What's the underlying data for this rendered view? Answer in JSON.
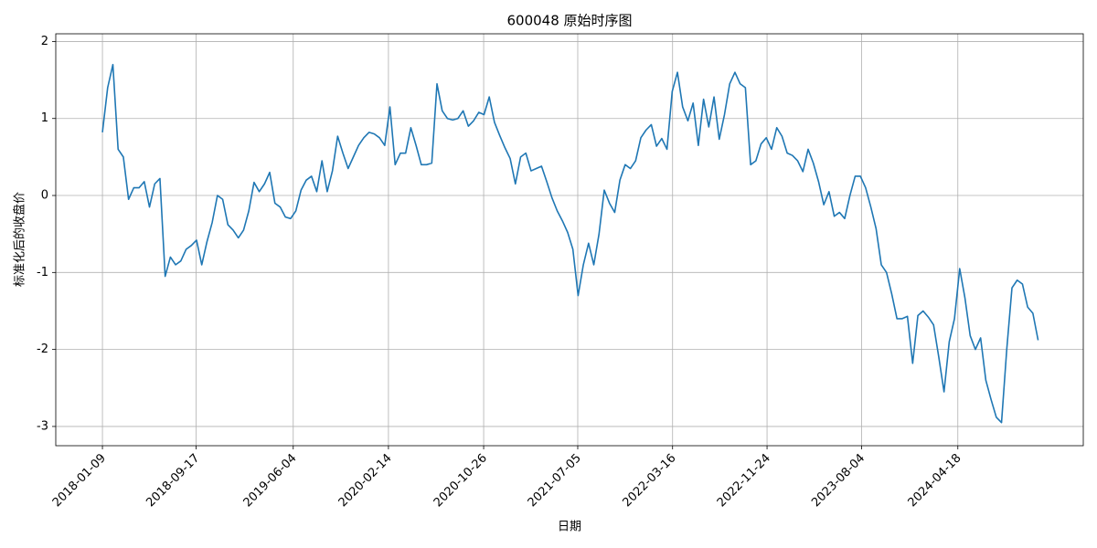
{
  "chart_data": {
    "type": "line",
    "title": "600048 原始时序图",
    "x_label": "日期",
    "y_label": "标准化后的收盘价",
    "x": [
      "2018-01-09",
      "2018-01-23",
      "2018-02-06",
      "2018-02-20",
      "2018-03-06",
      "2018-03-20",
      "2018-04-03",
      "2018-04-17",
      "2018-05-01",
      "2018-05-15",
      "2018-05-29",
      "2018-06-12",
      "2018-06-26",
      "2018-07-10",
      "2018-07-24",
      "2018-08-07",
      "2018-08-21",
      "2018-09-04",
      "2018-09-18",
      "2018-10-02",
      "2018-10-16",
      "2018-10-30",
      "2018-11-13",
      "2018-11-27",
      "2018-12-11",
      "2018-12-25",
      "2019-01-08",
      "2019-01-22",
      "2019-02-05",
      "2019-02-19",
      "2019-03-05",
      "2019-03-19",
      "2019-04-02",
      "2019-04-16",
      "2019-04-30",
      "2019-05-14",
      "2019-05-28",
      "2019-06-11",
      "2019-06-25",
      "2019-07-09",
      "2019-07-23",
      "2019-08-06",
      "2019-08-20",
      "2019-09-03",
      "2019-09-17",
      "2019-10-01",
      "2019-10-15",
      "2019-10-29",
      "2019-11-12",
      "2019-11-26",
      "2019-12-10",
      "2019-12-24",
      "2020-01-07",
      "2020-01-21",
      "2020-02-04",
      "2020-02-18",
      "2020-03-03",
      "2020-03-17",
      "2020-03-31",
      "2020-04-14",
      "2020-04-28",
      "2020-05-12",
      "2020-05-26",
      "2020-06-09",
      "2020-06-23",
      "2020-07-07",
      "2020-07-21",
      "2020-08-04",
      "2020-08-18",
      "2020-09-01",
      "2020-09-15",
      "2020-09-29",
      "2020-10-13",
      "2020-10-27",
      "2020-11-10",
      "2020-11-24",
      "2020-12-08",
      "2020-12-22",
      "2021-01-05",
      "2021-01-19",
      "2021-02-02",
      "2021-02-16",
      "2021-03-02",
      "2021-03-16",
      "2021-03-30",
      "2021-04-13",
      "2021-04-27",
      "2021-05-11",
      "2021-05-25",
      "2021-06-08",
      "2021-06-22",
      "2021-07-06",
      "2021-07-20",
      "2021-08-03",
      "2021-08-17",
      "2021-08-31",
      "2021-09-14",
      "2021-09-28",
      "2021-10-12",
      "2021-10-26",
      "2021-11-09",
      "2021-11-23",
      "2021-12-07",
      "2021-12-21",
      "2022-01-04",
      "2022-01-18",
      "2022-02-01",
      "2022-02-15",
      "2022-03-01",
      "2022-03-15",
      "2022-03-29",
      "2022-04-12",
      "2022-04-26",
      "2022-05-10",
      "2022-05-24",
      "2022-06-07",
      "2022-06-21",
      "2022-07-05",
      "2022-07-19",
      "2022-08-02",
      "2022-08-16",
      "2022-08-30",
      "2022-09-13",
      "2022-09-27",
      "2022-10-11",
      "2022-10-25",
      "2022-11-08",
      "2022-11-22",
      "2022-12-06",
      "2022-12-20",
      "2023-01-03",
      "2023-01-17",
      "2023-01-31",
      "2023-02-14",
      "2023-02-28",
      "2023-03-14",
      "2023-03-28",
      "2023-04-11",
      "2023-04-25",
      "2023-05-09",
      "2023-05-23",
      "2023-06-06",
      "2023-06-20",
      "2023-07-04",
      "2023-07-18",
      "2023-08-01",
      "2023-08-15",
      "2023-08-29",
      "2023-09-12",
      "2023-09-26",
      "2023-10-10",
      "2023-10-24",
      "2023-11-07",
      "2023-11-21",
      "2023-12-05",
      "2023-12-19",
      "2024-01-02",
      "2024-01-16",
      "2024-01-30",
      "2024-02-13",
      "2024-02-27",
      "2024-03-12",
      "2024-03-26",
      "2024-04-09",
      "2024-04-23",
      "2024-05-07",
      "2024-05-21",
      "2024-06-04",
      "2024-06-18",
      "2024-07-02",
      "2024-07-16",
      "2024-07-30",
      "2024-08-13",
      "2024-08-27",
      "2024-09-10",
      "2024-09-24",
      "2024-10-08",
      "2024-10-22",
      "2024-11-05",
      "2024-11-19"
    ],
    "values": [
      0.82,
      1.4,
      1.7,
      0.6,
      0.5,
      -0.05,
      0.1,
      0.1,
      0.18,
      -0.15,
      0.15,
      0.22,
      -1.05,
      -0.8,
      -0.9,
      -0.85,
      -0.7,
      -0.65,
      -0.58,
      -0.9,
      -0.6,
      -0.35,
      0.0,
      -0.05,
      -0.38,
      -0.45,
      -0.55,
      -0.45,
      -0.2,
      0.17,
      0.05,
      0.15,
      0.3,
      -0.1,
      -0.15,
      -0.28,
      -0.3,
      -0.2,
      0.07,
      0.2,
      0.25,
      0.05,
      0.45,
      0.05,
      0.32,
      0.77,
      0.55,
      0.35,
      0.5,
      0.65,
      0.75,
      0.82,
      0.8,
      0.75,
      0.65,
      1.15,
      0.4,
      0.55,
      0.55,
      0.88,
      0.65,
      0.4,
      0.4,
      0.42,
      1.45,
      1.1,
      1.0,
      0.98,
      1.0,
      1.1,
      0.9,
      0.97,
      1.08,
      1.05,
      1.28,
      0.95,
      0.78,
      0.62,
      0.48,
      0.15,
      0.5,
      0.55,
      0.32,
      0.35,
      0.38,
      0.18,
      -0.03,
      -0.2,
      -0.33,
      -0.48,
      -0.7,
      -1.3,
      -0.9,
      -0.62,
      -0.9,
      -0.5,
      0.07,
      -0.1,
      -0.22,
      0.2,
      0.4,
      0.35,
      0.45,
      0.75,
      0.85,
      0.92,
      0.64,
      0.74,
      0.6,
      1.35,
      1.6,
      1.15,
      0.97,
      1.2,
      0.65,
      1.25,
      0.89,
      1.28,
      0.73,
      1.05,
      1.45,
      1.6,
      1.45,
      1.4,
      0.4,
      0.45,
      0.67,
      0.75,
      0.6,
      0.88,
      0.77,
      0.55,
      0.52,
      0.45,
      0.31,
      0.6,
      0.42,
      0.18,
      -0.12,
      0.05,
      -0.27,
      -0.22,
      -0.3,
      0.0,
      0.25,
      0.25,
      0.1,
      -0.15,
      -0.43,
      -0.9,
      -1.0,
      -1.28,
      -1.6,
      -1.6,
      -1.57,
      -2.18,
      -1.56,
      -1.5,
      -1.58,
      -1.68,
      -2.1,
      -2.55,
      -1.9,
      -1.6,
      -0.95,
      -1.33,
      -1.82,
      -2.0,
      -1.85,
      -2.4,
      -2.65,
      -2.88,
      -2.95,
      -2.0,
      -1.2,
      -1.1,
      -1.15,
      -1.45,
      -1.53,
      -1.88
    ],
    "color": "#1f77b4",
    "xlim": [
      "2017-09-06",
      "2025-03-20"
    ],
    "xticks": [
      "2018-01-09",
      "2018-09-17",
      "2019-06-04",
      "2020-02-14",
      "2020-10-26",
      "2021-07-05",
      "2022-03-16",
      "2022-11-24",
      "2023-08-04",
      "2024-04-18"
    ],
    "ylim": [
      -3.25,
      2.1
    ],
    "yticks": [
      -3,
      -2,
      -1,
      0,
      1,
      2
    ],
    "grid": true
  }
}
